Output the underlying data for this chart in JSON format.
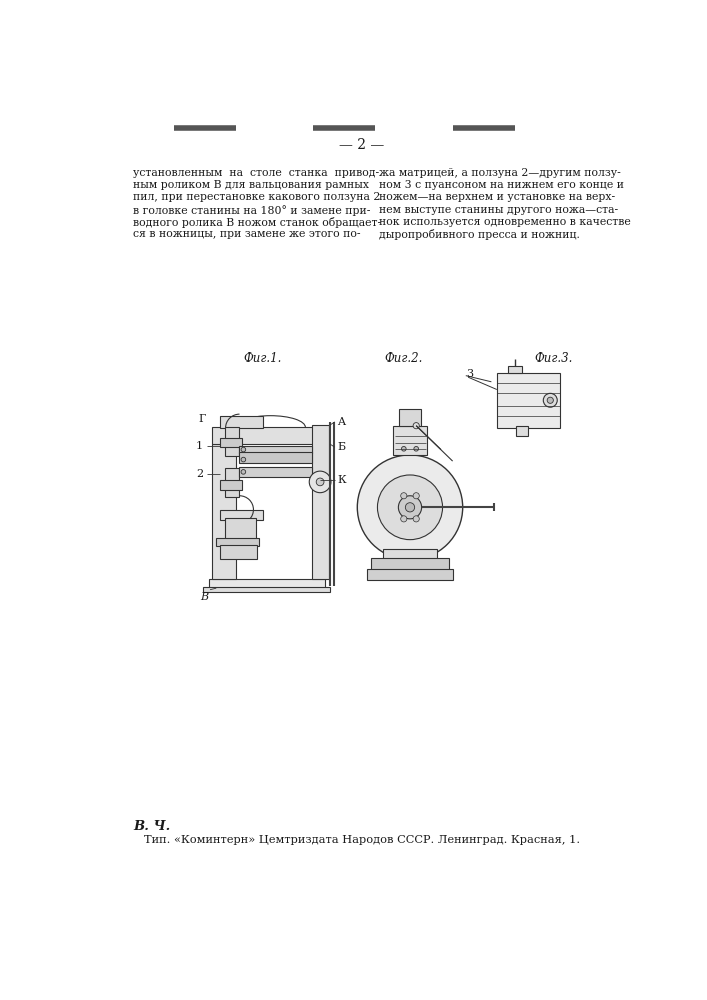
{
  "page_num": "— 2 —",
  "bg_color": "#ffffff",
  "text_color": "#1a1a1a",
  "line_color": "#333333",
  "fig1_label": "Фиг.1.",
  "fig2_label": "Фиг.2.",
  "fig3_label": "Фиг.3.",
  "col1_lines": [
    "установленным  на  столе  станка  привод-",
    "ным роликом В для вальцования рамных",
    "пил, при перестановке какового ползуна 2",
    "в головке станины на 180° и замене при-",
    "водного ролика В ножом станок обращает-",
    "ся в ножницы, при замене же этого по-"
  ],
  "col2_lines": [
    "жа матрицей, а ползуна 2—другим ползу-",
    "ном 3 с пуансоном на нижнем его конце и",
    "ножем—на верхнем и установке на верх-",
    "нем выступе станины другого ножа—ста-",
    "нок используется одновременно в качестве",
    "дыропробивного пресса и ножниц."
  ],
  "footer_bold": "В. Ч.",
  "footer_text": "Тип. «Коминтерн» Цемтриздата Народов СССР. Ленинград. Красная, 1."
}
